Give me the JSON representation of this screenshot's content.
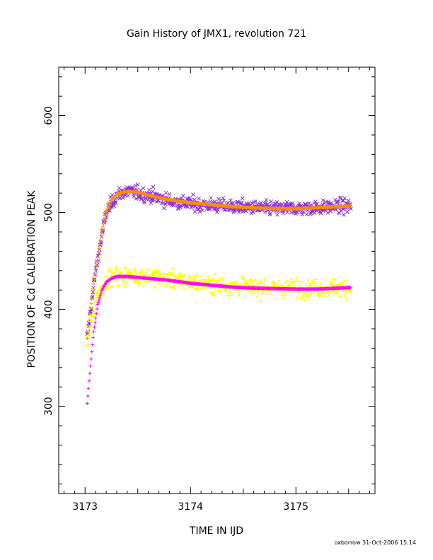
{
  "chart_data": {
    "type": "scatter",
    "title": "Gain History of JMX1, revolution 721",
    "xlabel": "TIME IN IJD",
    "ylabel": "POSITION OF Cd CALIBRATION PEAK",
    "xlim": [
      3172.75,
      3175.75
    ],
    "ylim": [
      210,
      650
    ],
    "x_ticks": [
      3173,
      3174,
      3175
    ],
    "x_tick_labels": [
      "3173",
      "3174",
      "3175"
    ],
    "y_ticks": [
      300,
      400,
      500,
      600
    ],
    "y_tick_labels": [
      "300",
      "400",
      "500",
      "600"
    ],
    "grid": false,
    "legend": "none",
    "x_range_of_data": [
      3173.02,
      3175.52
    ],
    "series": [
      {
        "marker": "x",
        "color": "#8a2be2",
        "points_per_curve": 600,
        "scatter_sd": 7,
        "curve": [
          [
            3173.02,
            370
          ],
          [
            3173.1,
            440
          ],
          [
            3173.2,
            500
          ],
          [
            3173.3,
            518
          ],
          [
            3173.4,
            522
          ],
          [
            3173.6,
            518
          ],
          [
            3173.8,
            512
          ],
          [
            3174.0,
            509
          ],
          [
            3174.4,
            506
          ],
          [
            3174.8,
            504
          ],
          [
            3175.2,
            505
          ],
          [
            3175.52,
            507
          ]
        ]
      },
      {
        "marker": "+",
        "color": "#ffff00",
        "points_per_curve": 600,
        "scatter_sd": 9,
        "curve": [
          [
            3173.02,
            365
          ],
          [
            3173.1,
            410
          ],
          [
            3173.2,
            430
          ],
          [
            3173.3,
            435
          ],
          [
            3173.6,
            434
          ],
          [
            3174.0,
            428
          ],
          [
            3174.4,
            424
          ],
          [
            3174.8,
            422
          ],
          [
            3175.2,
            422
          ],
          [
            3175.52,
            423
          ]
        ]
      },
      {
        "marker": "+",
        "color": "#ff8c00",
        "points_per_curve": 400,
        "curve": [
          [
            3173.02,
            370
          ],
          [
            3173.05,
            400
          ],
          [
            3173.1,
            440
          ],
          [
            3173.15,
            475
          ],
          [
            3173.2,
            500
          ],
          [
            3173.25,
            513
          ],
          [
            3173.3,
            519
          ],
          [
            3173.4,
            522
          ],
          [
            3173.5,
            521
          ],
          [
            3173.6,
            518
          ],
          [
            3173.8,
            513
          ],
          [
            3174.0,
            510
          ],
          [
            3174.2,
            508
          ],
          [
            3174.4,
            506
          ],
          [
            3174.6,
            505
          ],
          [
            3174.8,
            504
          ],
          [
            3175.0,
            504
          ],
          [
            3175.2,
            505
          ],
          [
            3175.4,
            506
          ],
          [
            3175.52,
            507
          ]
        ]
      },
      {
        "marker": "+",
        "color": "#ff00ff",
        "points_per_curve": 400,
        "curve": [
          [
            3173.02,
            303
          ],
          [
            3173.05,
            340
          ],
          [
            3173.08,
            375
          ],
          [
            3173.12,
            405
          ],
          [
            3173.16,
            420
          ],
          [
            3173.2,
            428
          ],
          [
            3173.25,
            432
          ],
          [
            3173.3,
            434
          ],
          [
            3173.4,
            434
          ],
          [
            3173.6,
            432
          ],
          [
            3173.8,
            430
          ],
          [
            3174.0,
            427
          ],
          [
            3174.2,
            425
          ],
          [
            3174.4,
            423
          ],
          [
            3174.6,
            422
          ],
          [
            3174.8,
            421.5
          ],
          [
            3175.0,
            421
          ],
          [
            3175.2,
            421
          ],
          [
            3175.4,
            422
          ],
          [
            3175.52,
            422.5
          ]
        ]
      }
    ]
  },
  "footer": {
    "stamp": "oxborrow 31-Oct-2006 15:14"
  }
}
